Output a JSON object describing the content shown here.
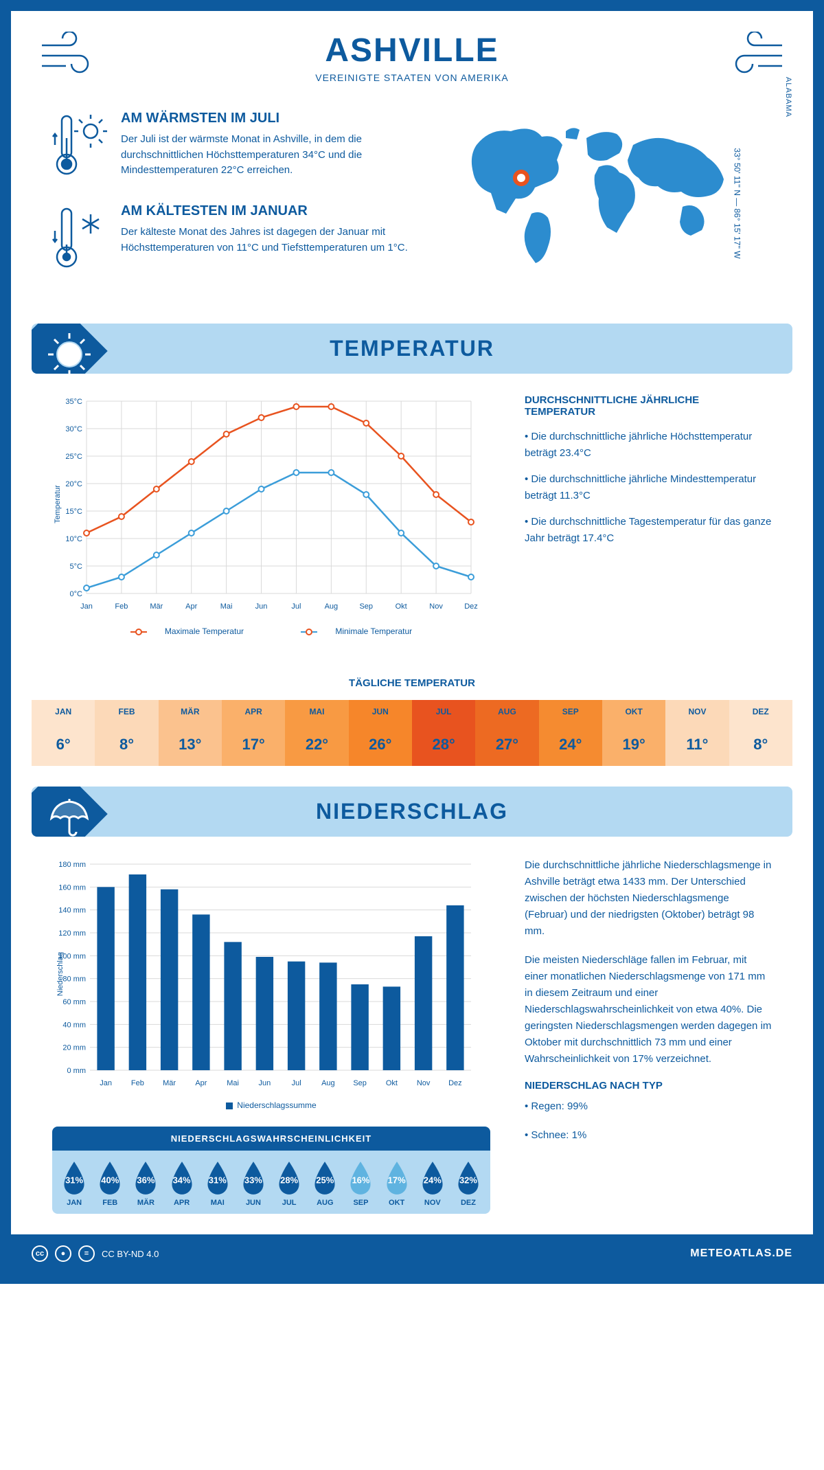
{
  "header": {
    "title": "ASHVILLE",
    "subtitle": "VEREINIGTE STAATEN VON AMERIKA"
  },
  "coords": "33° 50' 11'' N — 86° 15' 17'' W",
  "region": "ALABAMA",
  "facts": {
    "warm": {
      "title": "AM WÄRMSTEN IM JULI",
      "text": "Der Juli ist der wärmste Monat in Ashville, in dem die durchschnittlichen Höchsttemperaturen 34°C und die Mindesttemperaturen 22°C erreichen."
    },
    "cold": {
      "title": "AM KÄLTESTEN IM JANUAR",
      "text": "Der kälteste Monat des Jahres ist dagegen der Januar mit Höchsttemperaturen von 11°C und Tiefsttemperaturen um 1°C."
    }
  },
  "temp_section": {
    "title": "TEMPERATUR",
    "info_title": "DURCHSCHNITTLICHE JÄHRLICHE TEMPERATUR",
    "bullets": [
      "• Die durchschnittliche jährliche Höchsttemperatur beträgt 23.4°C",
      "• Die durchschnittliche jährliche Mindesttemperatur beträgt 11.3°C",
      "• Die durchschnittliche Tagestemperatur für das ganze Jahr beträgt 17.4°C"
    ],
    "legend_max": "Maximale Temperatur",
    "legend_min": "Minimale Temperatur",
    "y_label": "Temperatur",
    "daily_title": "TÄGLICHE TEMPERATUR"
  },
  "months_short": [
    "Jan",
    "Feb",
    "Mär",
    "Apr",
    "Mai",
    "Jun",
    "Jul",
    "Aug",
    "Sep",
    "Okt",
    "Nov",
    "Dez"
  ],
  "months_upper": [
    "JAN",
    "FEB",
    "MÄR",
    "APR",
    "MAI",
    "JUN",
    "JUL",
    "AUG",
    "SEP",
    "OKT",
    "NOV",
    "DEZ"
  ],
  "temp_chart": {
    "ylim": [
      0,
      35
    ],
    "ytick_step": 5,
    "max_values": [
      11,
      14,
      19,
      24,
      29,
      32,
      34,
      34,
      31,
      25,
      18,
      13
    ],
    "min_values": [
      1,
      3,
      7,
      11,
      15,
      19,
      22,
      22,
      18,
      11,
      5,
      3
    ],
    "max_color": "#e8531f",
    "min_color": "#3b9dd9",
    "grid_color": "#d9d9d9"
  },
  "daily_temp": {
    "values": [
      "6°",
      "8°",
      "13°",
      "17°",
      "22°",
      "26°",
      "28°",
      "27°",
      "24°",
      "19°",
      "11°",
      "8°"
    ],
    "colors": [
      "#fde4cd",
      "#fcd9b8",
      "#fbc28e",
      "#fab06a",
      "#f89a43",
      "#f6862a",
      "#e8531f",
      "#ed6a22",
      "#f58b30",
      "#fab06a",
      "#fcd9b8",
      "#fde4cd"
    ]
  },
  "precip_section": {
    "title": "NIEDERSCHLAG",
    "para1": "Die durchschnittliche jährliche Niederschlagsmenge in Ashville beträgt etwa 1433 mm. Der Unterschied zwischen der höchsten Niederschlagsmenge (Februar) und der niedrigsten (Oktober) beträgt 98 mm.",
    "para2": "Die meisten Niederschläge fallen im Februar, mit einer monatlichen Niederschlagsmenge von 171 mm in diesem Zeitraum und einer Niederschlagswahrscheinlichkeit von etwa 40%. Die geringsten Niederschlagsmengen werden dagegen im Oktober mit durchschnittlich 73 mm und einer Wahrscheinlichkeit von 17% verzeichnet.",
    "type_title": "NIEDERSCHLAG NACH TYP",
    "type_rain": "• Regen: 99%",
    "type_snow": "• Schnee: 1%",
    "legend": "Niederschlagssumme",
    "y_label": "Niederschlag"
  },
  "precip_chart": {
    "ylim": [
      0,
      180
    ],
    "ytick_step": 20,
    "values": [
      160,
      171,
      158,
      136,
      112,
      99,
      95,
      94,
      75,
      73,
      117,
      144
    ],
    "bar_color": "#0d5a9e",
    "grid_color": "#d9d9d9"
  },
  "prob": {
    "title": "NIEDERSCHLAGSWAHRSCHEINLICHKEIT",
    "values": [
      "31%",
      "40%",
      "36%",
      "34%",
      "31%",
      "33%",
      "28%",
      "25%",
      "16%",
      "17%",
      "24%",
      "32%"
    ],
    "dark_color": "#0d5a9e",
    "light_color": "#5fb3e0",
    "dark_flags": [
      true,
      true,
      true,
      true,
      true,
      true,
      true,
      true,
      false,
      false,
      true,
      true
    ]
  },
  "footer": {
    "license": "CC BY-ND 4.0",
    "site": "METEOATLAS.DE"
  }
}
